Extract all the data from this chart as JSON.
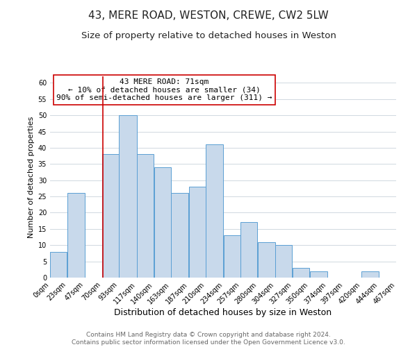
{
  "title": "43, MERE ROAD, WESTON, CREWE, CW2 5LW",
  "subtitle": "Size of property relative to detached houses in Weston",
  "xlabel": "Distribution of detached houses by size in Weston",
  "ylabel": "Number of detached properties",
  "footer_line1": "Contains HM Land Registry data © Crown copyright and database right 2024.",
  "footer_line2": "Contains public sector information licensed under the Open Government Licence v3.0.",
  "annotation_line1": "43 MERE ROAD: 71sqm",
  "annotation_line2": "← 10% of detached houses are smaller (34)",
  "annotation_line3": "90% of semi-detached houses are larger (311) →",
  "property_line_x": 71,
  "bar_edges": [
    0,
    23,
    47,
    70,
    93,
    117,
    140,
    163,
    187,
    210,
    234,
    257,
    280,
    304,
    327,
    350,
    374,
    397,
    420,
    444,
    467
  ],
  "bar_heights": [
    8,
    26,
    0,
    38,
    50,
    38,
    34,
    26,
    28,
    41,
    13,
    17,
    11,
    10,
    3,
    2,
    0,
    0,
    2,
    0
  ],
  "bar_color": "#c8d9eb",
  "bar_edge_color": "#5a9fd4",
  "grid_color": "#d0d8e0",
  "property_line_color": "#cc0000",
  "annotation_box_color": "#cc0000",
  "ylim": [
    0,
    62
  ],
  "yticks": [
    0,
    5,
    10,
    15,
    20,
    25,
    30,
    35,
    40,
    45,
    50,
    55,
    60
  ],
  "tick_labels": [
    "0sqm",
    "23sqm",
    "47sqm",
    "70sqm",
    "93sqm",
    "117sqm",
    "140sqm",
    "163sqm",
    "187sqm",
    "210sqm",
    "234sqm",
    "257sqm",
    "280sqm",
    "304sqm",
    "327sqm",
    "350sqm",
    "374sqm",
    "397sqm",
    "420sqm",
    "444sqm",
    "467sqm"
  ],
  "background_color": "#ffffff",
  "title_fontsize": 11,
  "subtitle_fontsize": 9.5,
  "xlabel_fontsize": 9,
  "ylabel_fontsize": 8,
  "tick_fontsize": 7,
  "annotation_fontsize": 8,
  "footer_fontsize": 6.5
}
